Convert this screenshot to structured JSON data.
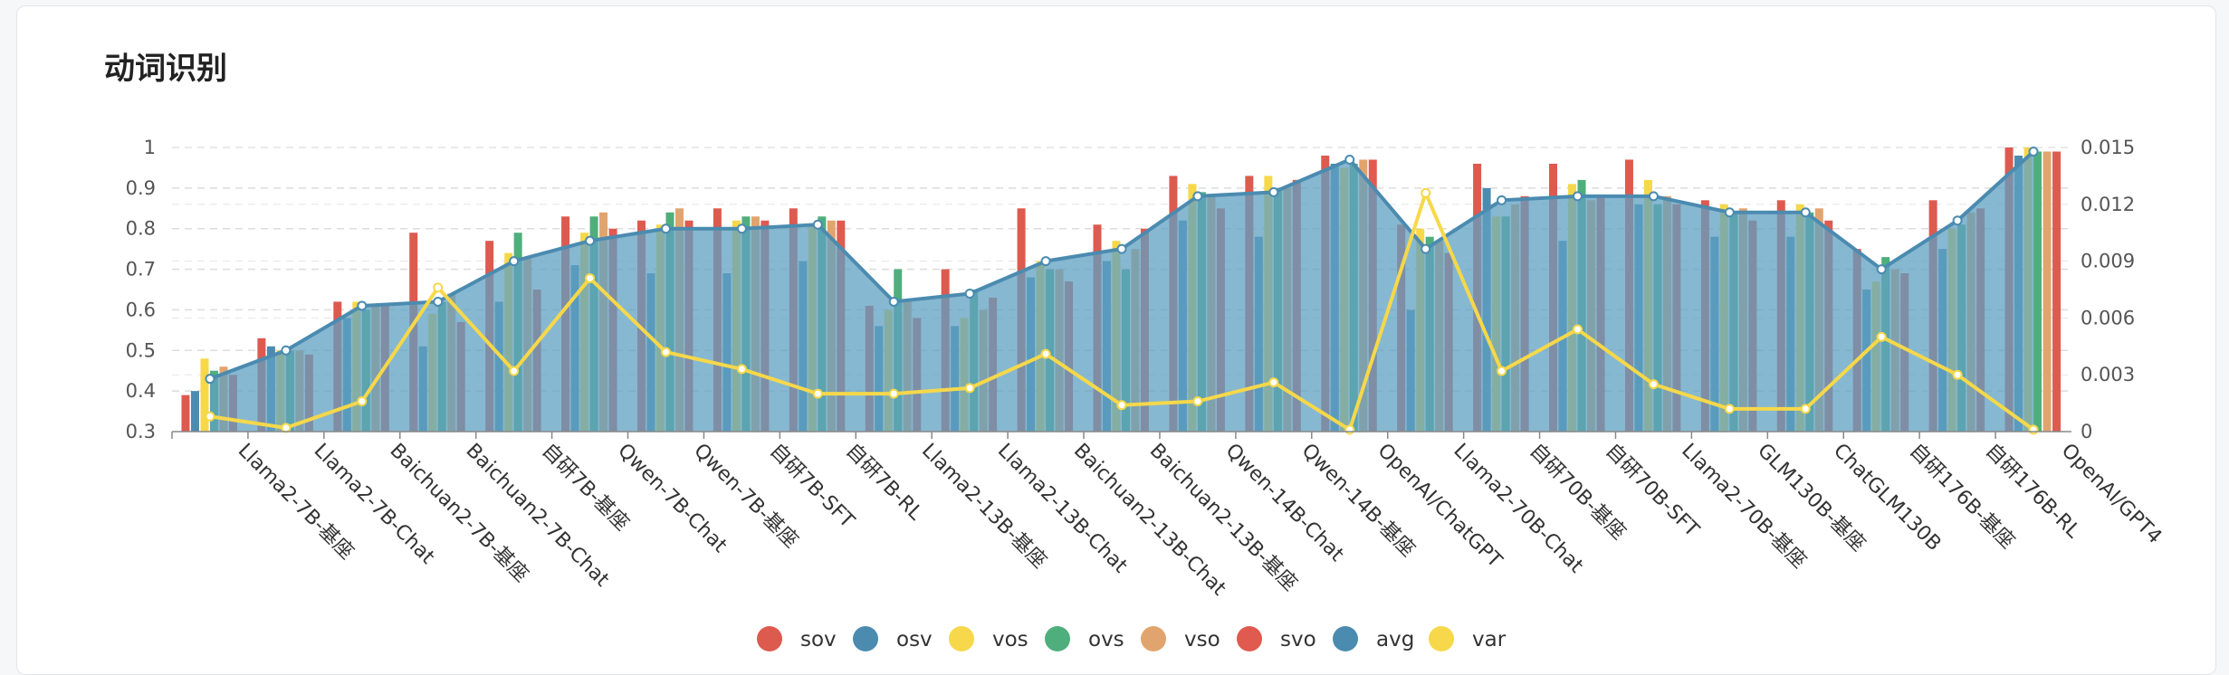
{
  "title": "动词识别",
  "colors": {
    "sov": "#dd5a4f",
    "osv": "#4b8bb0",
    "vos": "#f6d84a",
    "ovs": "#4faf7c",
    "vso": "#e2a46e",
    "svo": "#e05a4f",
    "avg": "#4b8bb0",
    "var": "#f6d84a",
    "avgArea": "#5fa0c2"
  },
  "chart_data": {
    "type": "bar",
    "categories": [
      "Llama2-7B-基座",
      "Llama2-7B-Chat",
      "Baichuan2-7B-基座",
      "Baichuan2-7B-Chat",
      "自研7B-基座",
      "Qwen-7B-Chat",
      "Qwen-7B-基座",
      "自研7B-SFT",
      "自研7B-RL",
      "Llama2-13B-基座",
      "Llama2-13B-Chat",
      "Baichuan2-13B-Chat",
      "Baichuan2-13B-基座",
      "Qwen-14B-Chat",
      "Qwen-14B-基座",
      "OpenAI/ChatGPT",
      "Llama2-70B-Chat",
      "自研70B-基座",
      "自研70B-SFT",
      "Llama2-70B-基座",
      "GLM130B-基座",
      "ChatGLM130B",
      "自研176B-基座",
      "自研176B-RL",
      "OpenAI/GPT4"
    ],
    "series": [
      {
        "name": "sov",
        "type": "bar",
        "values": [
          0.39,
          0.53,
          0.62,
          0.79,
          0.77,
          0.83,
          0.82,
          0.85,
          0.85,
          0.61,
          0.7,
          0.85,
          0.81,
          0.93,
          0.93,
          0.98,
          0.81,
          0.96,
          0.96,
          0.97,
          0.87,
          0.87,
          0.75,
          0.87,
          1.0
        ]
      },
      {
        "name": "osv",
        "type": "bar",
        "values": [
          0.4,
          0.51,
          0.58,
          0.51,
          0.62,
          0.71,
          0.69,
          0.69,
          0.72,
          0.56,
          0.56,
          0.68,
          0.72,
          0.82,
          0.78,
          0.96,
          0.6,
          0.9,
          0.77,
          0.86,
          0.78,
          0.78,
          0.65,
          0.75,
          0.98
        ]
      },
      {
        "name": "vos",
        "type": "bar",
        "values": [
          0.48,
          0.5,
          0.62,
          0.59,
          0.74,
          0.79,
          0.81,
          0.82,
          0.81,
          0.6,
          0.58,
          0.72,
          0.77,
          0.91,
          0.93,
          0.95,
          0.8,
          0.83,
          0.91,
          0.92,
          0.86,
          0.86,
          0.67,
          0.8,
          1.0
        ]
      },
      {
        "name": "ovs",
        "type": "bar",
        "values": [
          0.45,
          0.5,
          0.6,
          0.62,
          0.79,
          0.83,
          0.84,
          0.83,
          0.83,
          0.7,
          0.65,
          0.7,
          0.7,
          0.89,
          0.9,
          0.96,
          0.78,
          0.83,
          0.92,
          0.86,
          0.84,
          0.84,
          0.73,
          0.81,
          0.99
        ]
      },
      {
        "name": "vso",
        "type": "bar",
        "values": [
          0.46,
          0.5,
          0.61,
          0.64,
          0.73,
          0.84,
          0.85,
          0.83,
          0.82,
          0.62,
          0.6,
          0.7,
          0.75,
          0.88,
          0.9,
          0.97,
          0.77,
          0.86,
          0.87,
          0.88,
          0.85,
          0.85,
          0.7,
          0.84,
          0.99
        ]
      },
      {
        "name": "svo",
        "type": "bar",
        "values": [
          0.44,
          0.49,
          0.61,
          0.57,
          0.65,
          0.8,
          0.82,
          0.82,
          0.82,
          0.58,
          0.63,
          0.67,
          0.8,
          0.85,
          0.92,
          0.97,
          0.74,
          0.88,
          0.88,
          0.86,
          0.82,
          0.82,
          0.69,
          0.85,
          0.99
        ]
      },
      {
        "name": "avg",
        "type": "line",
        "values": [
          0.43,
          0.5,
          0.61,
          0.62,
          0.72,
          0.77,
          0.8,
          0.8,
          0.81,
          0.62,
          0.64,
          0.72,
          0.75,
          0.88,
          0.89,
          0.97,
          0.75,
          0.87,
          0.88,
          0.88,
          0.84,
          0.84,
          0.7,
          0.82,
          0.99
        ]
      },
      {
        "name": "var",
        "type": "line",
        "axis": "right",
        "values": [
          0.0008,
          0.0002,
          0.0016,
          0.0076,
          0.0032,
          0.0081,
          0.0042,
          0.0033,
          0.002,
          0.002,
          0.0023,
          0.0041,
          0.0014,
          0.0016,
          0.0026,
          0.0001,
          0.0126,
          0.0032,
          0.0054,
          0.0025,
          0.0012,
          0.0012,
          0.005,
          0.003,
          0.0001
        ]
      }
    ],
    "yLeft": {
      "min": 0.3,
      "max": 1,
      "ticks": [
        "0.3",
        "0.4",
        "0.5",
        "0.6",
        "0.7",
        "0.8",
        "0.9",
        "1"
      ]
    },
    "yRight": {
      "min": 0,
      "max": 0.015,
      "ticks": [
        "0",
        "0.003",
        "0.006",
        "0.009",
        "0.012",
        "0.015"
      ]
    },
    "legend": {
      "position": "bottom",
      "items": [
        "sov",
        "osv",
        "vos",
        "ovs",
        "vso",
        "svo",
        "avg",
        "var"
      ]
    }
  }
}
